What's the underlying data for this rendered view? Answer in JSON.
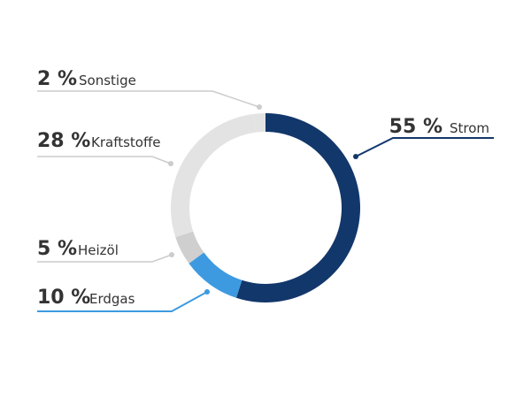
{
  "chart_data": {
    "type": "pie",
    "donut": true,
    "slices": [
      {
        "label": "Strom",
        "value": 55,
        "percent_text": "55 %",
        "color": "#12376b",
        "leader_color": "#12376b"
      },
      {
        "label": "Erdgas",
        "value": 10,
        "percent_text": "10 %",
        "color": "#3d9ae0",
        "leader_color": "#3d9ae0"
      },
      {
        "label": "Heizöl",
        "value": 5,
        "percent_text": "5 %",
        "color": "#cfcfcf",
        "leader_color": "#cccccc"
      },
      {
        "label": "Kraftstoffe",
        "value": 28,
        "percent_text": "28 %",
        "color": "#e3e3e3",
        "leader_color": "#cccccc"
      },
      {
        "label": "Sonstige",
        "value": 2,
        "percent_text": "2 %",
        "color": "#e3e3e3",
        "leader_color": "#cccccc"
      }
    ],
    "start_angle_deg": 0,
    "direction": "clockwise"
  }
}
